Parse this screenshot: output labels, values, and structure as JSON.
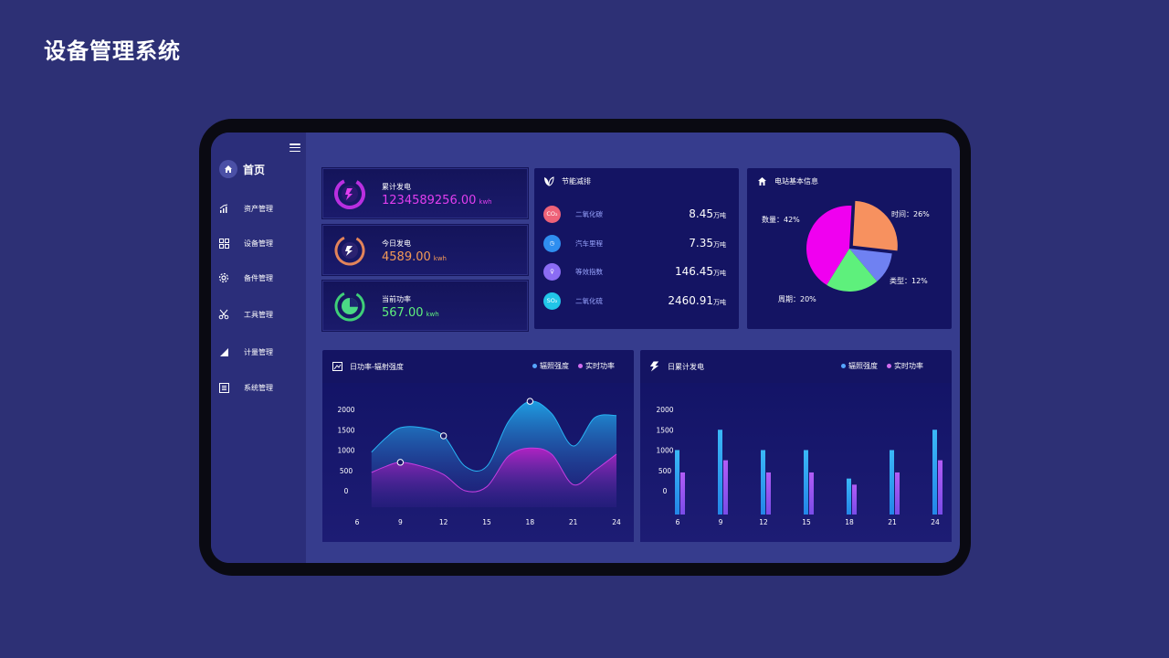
{
  "page_title": "设备管理系统",
  "sidebar": {
    "home_label": "首页",
    "items": [
      {
        "label": "资产管理",
        "icon": "chart-icon"
      },
      {
        "label": "设备管理",
        "icon": "grid-icon"
      },
      {
        "label": "备件管理",
        "icon": "gear-icon"
      },
      {
        "label": "工具管理",
        "icon": "scissors-icon"
      },
      {
        "label": "计量管理",
        "icon": "signal-icon"
      },
      {
        "label": "系统管理",
        "icon": "document-icon"
      }
    ]
  },
  "stats": [
    {
      "label": "累计发电",
      "value": "1234589256.00",
      "unit": "kwh",
      "color": "#e23ef0"
    },
    {
      "label": "今日发电",
      "value": "4589.00",
      "unit": "kwh",
      "color": "#f39a57"
    },
    {
      "label": "当前功率",
      "value": "567.00",
      "unit": "kwh",
      "color": "#5ff07e"
    }
  ],
  "energy": {
    "title": "节能减排",
    "items": [
      {
        "badge": "CO₂",
        "name": "二氧化碳",
        "value": "8.45",
        "unit": "万吨",
        "color": "#ee6278"
      },
      {
        "badge": "◷",
        "name": "汽车里程",
        "value": "7.35",
        "unit": "万吨",
        "color": "#2f8ef0"
      },
      {
        "badge": "♀",
        "name": "等效指数",
        "value": "146.45",
        "unit": "万吨",
        "color": "#8b6cf4"
      },
      {
        "badge": "SO₂",
        "name": "二氧化硫",
        "value": "2460.91",
        "unit": "万吨",
        "color": "#21c5e8"
      }
    ]
  },
  "station": {
    "title": "电站基本信息",
    "labels": {
      "count": "数量：42%",
      "time": "时间：26%",
      "type": "类型：12%",
      "period": "周期：20%"
    }
  },
  "line_chart": {
    "title": "日功率-辐射强度",
    "legend": [
      "辐照强度",
      "实时功率"
    ]
  },
  "bar_chart": {
    "title": "日累计发电",
    "legend": [
      "辐照强度",
      "实时功率"
    ]
  },
  "colors": {
    "series1": "#2aa8f0",
    "series2": "#b55cf2",
    "bg": "#2d3075"
  },
  "chart_data": [
    {
      "type": "pie",
      "title": "",
      "categories": [
        "数量",
        "时间",
        "类型",
        "周期"
      ],
      "values": [
        42,
        26,
        12,
        20
      ],
      "colors": [
        "#f000f0",
        "#f7915f",
        "#6f81f2",
        "#5ef07c"
      ]
    },
    {
      "type": "area",
      "title": "日功率-辐射强度",
      "x_ticks": [
        6,
        9,
        12,
        15,
        18,
        21,
        24
      ],
      "y_ticks": [
        0,
        500,
        1000,
        1500,
        2000
      ],
      "series": [
        {
          "name": "辐照强度",
          "x": [
            7,
            8,
            9,
            10.5,
            12,
            13.5,
            15,
            16.5,
            18,
            19.5,
            21,
            22.5,
            24
          ],
          "y": [
            950,
            1300,
            1550,
            1550,
            1350,
            600,
            600,
            1700,
            2200,
            1900,
            1100,
            1800,
            1850
          ]
        },
        {
          "name": "实时功率",
          "x": [
            7,
            8,
            9,
            10.5,
            12,
            13.5,
            15,
            16.5,
            18,
            19.5,
            21,
            22.5,
            24
          ],
          "y": [
            450,
            600,
            700,
            600,
            400,
            0,
            100,
            850,
            1050,
            900,
            150,
            500,
            900
          ]
        }
      ],
      "ylim": [
        0,
        2000
      ],
      "xlim": [
        6,
        24
      ]
    },
    {
      "type": "bar",
      "title": "日累计发电",
      "categories": [
        "6",
        "9",
        "12",
        "15",
        "18",
        "21",
        "24"
      ],
      "y_ticks": [
        0,
        500,
        1000,
        1500,
        2000
      ],
      "series": [
        {
          "name": "辐照强度",
          "values": [
            1000,
            1500,
            1000,
            1000,
            300,
            1000,
            1500
          ]
        },
        {
          "name": "实时功率",
          "values": [
            450,
            750,
            450,
            450,
            150,
            450,
            750
          ]
        }
      ],
      "ylim": [
        -500,
        2000
      ]
    }
  ]
}
